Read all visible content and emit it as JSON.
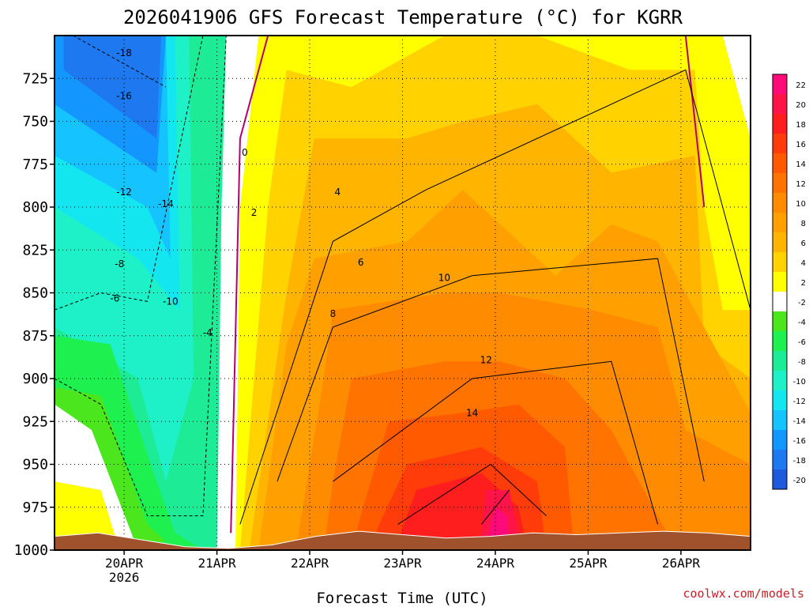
{
  "chart_data": {
    "type": "heatmap",
    "title": "2026041906 GFS Forecast Temperature (°C) for KGRR",
    "xlabel": "Forecast Time (UTC)",
    "ylabel": "",
    "credit": "coolwx.com/models",
    "y_axis": {
      "range": [
        1000,
        700
      ],
      "ticks": [
        "725",
        "750",
        "775",
        "800",
        "825",
        "850",
        "875",
        "900",
        "925",
        "950",
        "975",
        "1000"
      ]
    },
    "x_axis": {
      "range": [
        0,
        7.5
      ],
      "unit": "days from 19APR 06Z",
      "ticks": [
        {
          "t": 0.75,
          "label": "20APR",
          "sub": "2026"
        },
        {
          "t": 1.75,
          "label": "21APR"
        },
        {
          "t": 2.75,
          "label": "22APR"
        },
        {
          "t": 3.75,
          "label": "23APR"
        },
        {
          "t": 4.75,
          "label": "24APR"
        },
        {
          "t": 5.75,
          "label": "25APR"
        },
        {
          "t": 6.75,
          "label": "26APR"
        }
      ]
    },
    "colorbar": {
      "levels": [
        "22",
        "20",
        "18",
        "16",
        "14",
        "12",
        "10",
        "8",
        "6",
        "4",
        "2",
        "-2",
        "-4",
        "-6",
        "-8",
        "-10",
        "-12",
        "-14",
        "-16",
        "-18",
        "-20"
      ],
      "colors": [
        "#ff0a78",
        "#ff1448",
        "#ff1e1e",
        "#ff3c0a",
        "#ff5a00",
        "#ff7300",
        "#ff8c00",
        "#ffa000",
        "#ffb400",
        "#ffd200",
        "#ffff00",
        "#ffffff",
        "#4be61e",
        "#1ef050",
        "#1eeb96",
        "#1ef0c8",
        "#14e6f0",
        "#14c3ff",
        "#1496ff",
        "#1e78f0",
        "#1e5adc"
      ],
      "ticks": [
        "22",
        "20",
        "18",
        "16",
        "14",
        "12",
        "10",
        "8",
        "6",
        "4",
        "2",
        "-2",
        "-4",
        "-6",
        "-8",
        "-10",
        "-12",
        "-14",
        "-16",
        "-18",
        "-20"
      ]
    },
    "surface_pressure": [
      992,
      990,
      994,
      998,
      999,
      997,
      992,
      989,
      991,
      993,
      992,
      990,
      991,
      990,
      989,
      990,
      992
    ],
    "series": [
      {
        "name": "t_-18",
        "t": [
          0.2,
          1.2
        ],
        "p": [
          700,
          730
        ]
      },
      {
        "name": "t_-10",
        "t": [
          0.0,
          0.5,
          1.0,
          1.6
        ],
        "p": [
          860,
          850,
          855,
          700
        ]
      },
      {
        "name": "t_-4",
        "t": [
          0.0,
          0.5,
          1.0,
          1.6,
          1.85
        ],
        "p": [
          900,
          915,
          980,
          980,
          700
        ]
      },
      {
        "name": "t_0",
        "t": [
          1.9,
          2.0,
          2.3,
          6.8,
          7.0
        ],
        "p": [
          990,
          760,
          700,
          700,
          800
        ]
      },
      {
        "name": "t_4",
        "t": [
          2.0,
          3.0,
          4.0,
          6.8,
          7.5
        ],
        "p": [
          985,
          820,
          790,
          720,
          860
        ]
      },
      {
        "name": "t_8",
        "t": [
          2.4,
          3.0,
          4.5,
          6.5,
          7.0
        ],
        "p": [
          960,
          870,
          840,
          830,
          960
        ]
      },
      {
        "name": "t_12",
        "t": [
          3.0,
          4.5,
          6.0,
          6.5
        ],
        "p": [
          960,
          900,
          890,
          985
        ]
      },
      {
        "name": "t_16",
        "t": [
          3.7,
          4.7,
          5.3
        ],
        "p": [
          985,
          950,
          980
        ]
      },
      {
        "name": "t_20",
        "t": [
          4.6,
          4.9
        ],
        "p": [
          985,
          965
        ]
      }
    ],
    "contour_labels": [
      "-18",
      "-16",
      "-14",
      "-12",
      "-10",
      "-8",
      "-6",
      "-4",
      "0",
      "2",
      "4",
      "6",
      "8",
      "10",
      "12",
      "14"
    ]
  }
}
